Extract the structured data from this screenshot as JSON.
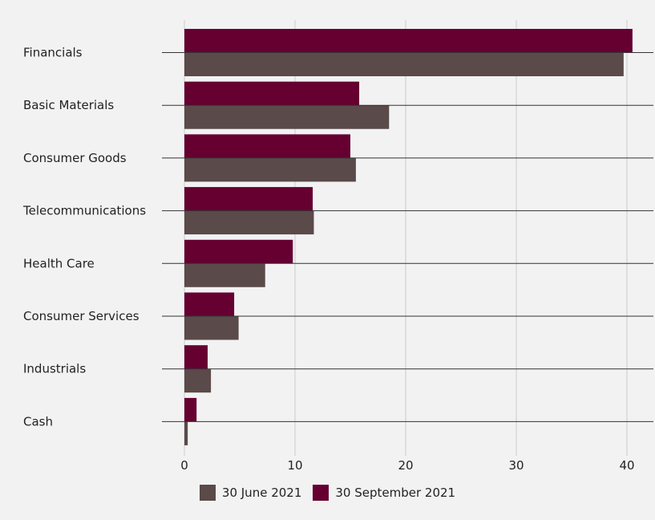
{
  "chart_data": {
    "type": "bar",
    "orientation": "horizontal",
    "categories": [
      "Financials",
      "Basic Materials",
      "Consumer Goods",
      "Telecommunications",
      "Health Care",
      "Consumer Services",
      "Industrials",
      "Cash"
    ],
    "series": [
      {
        "name": "30 June 2021",
        "color": "#5a4a4a",
        "values": [
          39.7,
          18.5,
          15.5,
          11.7,
          7.3,
          4.9,
          2.4,
          0.3
        ]
      },
      {
        "name": "30 September 2021",
        "color": "#650031",
        "values": [
          40.5,
          15.8,
          15.0,
          11.6,
          9.8,
          4.5,
          2.1,
          1.1
        ]
      }
    ],
    "xlim": [
      0,
      42
    ],
    "xticks": [
      0,
      10,
      20,
      30,
      40
    ],
    "grid": "vertical",
    "legend_position": "bottom-center",
    "title": "",
    "xlabel": "",
    "ylabel": ""
  }
}
